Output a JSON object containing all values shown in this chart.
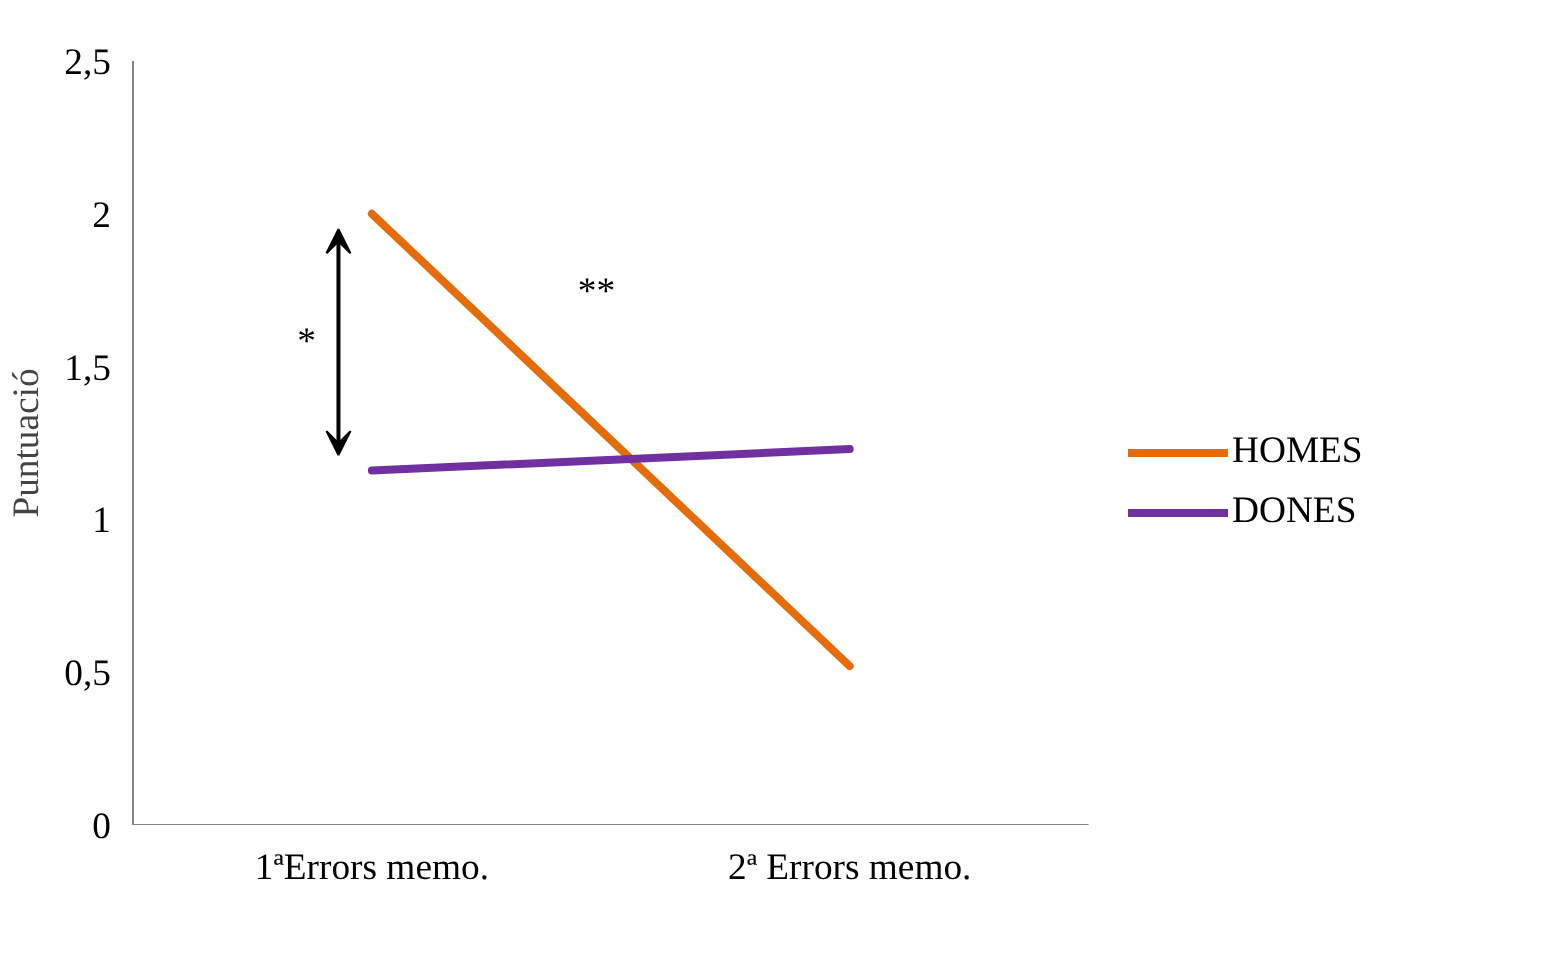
{
  "chart_data": {
    "type": "line",
    "ylabel": "Puntuació",
    "categories": [
      "1ªErrors memo.",
      "2ª Errors memo."
    ],
    "series": [
      {
        "name": "HOMES",
        "color": "#e46c0a",
        "values": [
          2.0,
          0.52
        ]
      },
      {
        "name": "DONES",
        "color": "#7030a0",
        "values": [
          1.16,
          1.23
        ]
      }
    ],
    "ylim": [
      0,
      2.5
    ],
    "yticks": [
      {
        "value": 0,
        "label": "0"
      },
      {
        "value": 0.5,
        "label": "0,5"
      },
      {
        "value": 1,
        "label": "1"
      },
      {
        "value": 1.5,
        "label": "1,5"
      },
      {
        "value": 2,
        "label": "2"
      },
      {
        "value": 2.5,
        "label": "2,5"
      }
    ],
    "annotations": [
      "*",
      "**"
    ],
    "legend": "right",
    "grid": false,
    "marker": "none",
    "line_style": "solid"
  }
}
